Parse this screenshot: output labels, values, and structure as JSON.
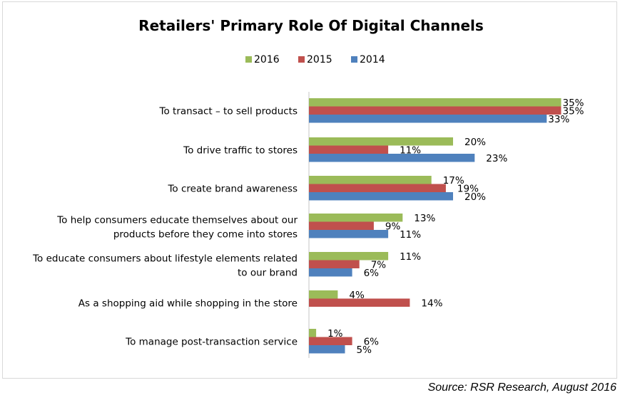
{
  "chart_data": {
    "type": "bar",
    "orientation": "horizontal",
    "title": "Retailers' Primary Role Of Digital Channels",
    "xlabel": "",
    "ylabel": "",
    "xlim": [
      0,
      35
    ],
    "grid": false,
    "legend_position": "top-center",
    "categories": [
      [
        "To transact – to sell products"
      ],
      [
        "To drive traffic to stores"
      ],
      [
        "To create brand awareness"
      ],
      [
        "To help consumers educate themselves about our",
        "products before they come into stores"
      ],
      [
        "To educate consumers about lifestyle elements related",
        "to our brand"
      ],
      [
        "As a shopping aid while shopping in the store"
      ],
      [
        "To manage post-transaction service"
      ]
    ],
    "series": [
      {
        "name": "2016",
        "color": "#9bbb59",
        "values": [
          35,
          20,
          17,
          13,
          11,
          4,
          1
        ]
      },
      {
        "name": "2015",
        "color": "#c0504d",
        "values": [
          35,
          11,
          19,
          9,
          7,
          14,
          6
        ]
      },
      {
        "name": "2014",
        "color": "#4f81bd",
        "values": [
          33,
          23,
          20,
          11,
          6,
          null,
          5
        ]
      }
    ],
    "value_suffix": "%"
  },
  "source": "Source: RSR Research, August 2016"
}
